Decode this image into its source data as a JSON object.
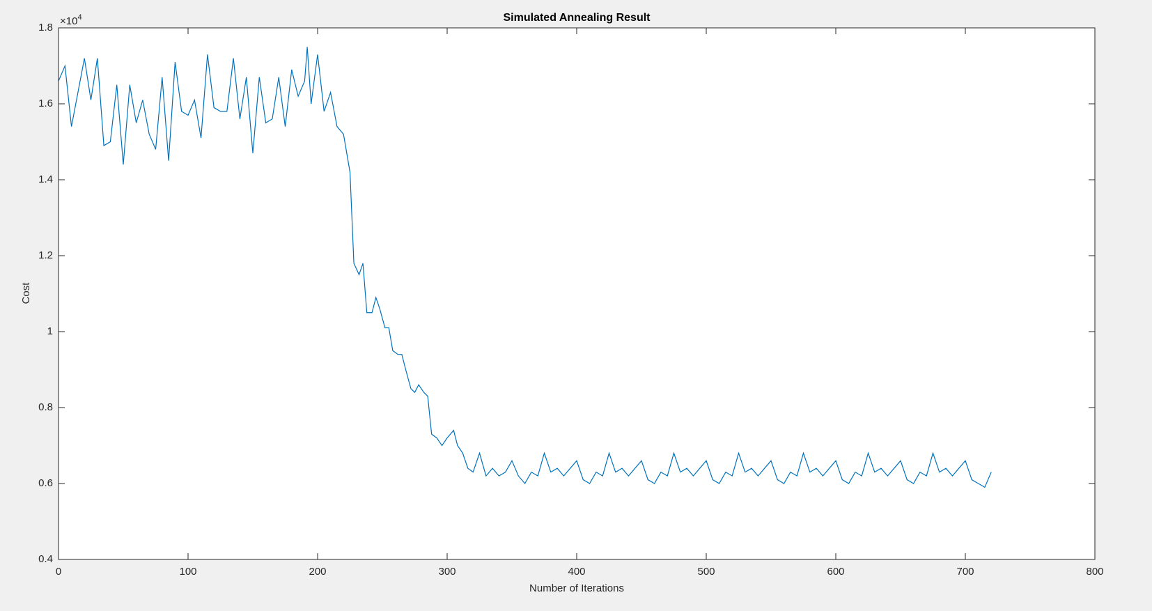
{
  "chart_data": {
    "type": "line",
    "title": "Simulated Annealing Result",
    "xlabel": "Number of Iterations",
    "ylabel": "Cost",
    "y_multiplier": {
      "base": "×10",
      "exponent": "4"
    },
    "xlim": [
      0,
      800
    ],
    "xticks": [
      0,
      100,
      200,
      300,
      400,
      500,
      600,
      700,
      800
    ],
    "ylim": [
      0.4,
      1.8
    ],
    "yticks": [
      0.4,
      0.6,
      0.8,
      1,
      1.2,
      1.4,
      1.6,
      1.8
    ],
    "grid": false,
    "box": true,
    "series": [
      {
        "color": "#0072bd",
        "x": [
          0,
          5,
          10,
          15,
          20,
          25,
          30,
          35,
          40,
          45,
          50,
          55,
          60,
          65,
          70,
          75,
          80,
          85,
          90,
          95,
          100,
          105,
          110,
          115,
          120,
          125,
          130,
          135,
          140,
          145,
          150,
          155,
          160,
          165,
          170,
          175,
          180,
          185,
          190,
          192,
          195,
          200,
          205,
          210,
          215,
          220,
          225,
          228,
          232,
          235,
          238,
          242,
          245,
          248,
          252,
          255,
          258,
          262,
          265,
          268,
          272,
          275,
          278,
          282,
          285,
          288,
          292,
          296,
          300,
          305,
          308,
          312,
          316,
          320,
          325,
          330,
          335,
          340,
          345,
          350,
          355,
          360,
          365,
          370,
          375,
          380,
          385,
          390,
          395,
          400,
          405,
          410,
          415,
          420,
          425,
          430,
          435,
          440,
          445,
          450,
          455,
          460,
          465,
          470,
          475,
          480,
          485,
          490,
          495,
          500,
          505,
          510,
          515,
          520,
          525,
          530,
          535,
          540,
          545,
          550,
          555,
          560,
          565,
          570,
          575,
          580,
          585,
          590,
          595,
          600,
          605,
          610,
          615,
          620,
          625,
          630,
          635,
          640,
          645,
          650,
          655,
          660,
          665,
          670,
          675,
          680,
          685,
          690,
          695,
          700,
          705,
          710,
          715,
          720
        ],
        "values": [
          1.66,
          1.7,
          1.54,
          1.63,
          1.72,
          1.61,
          1.72,
          1.49,
          1.5,
          1.65,
          1.44,
          1.65,
          1.55,
          1.61,
          1.52,
          1.48,
          1.67,
          1.45,
          1.71,
          1.58,
          1.57,
          1.61,
          1.51,
          1.73,
          1.59,
          1.58,
          1.58,
          1.72,
          1.56,
          1.67,
          1.47,
          1.67,
          1.55,
          1.56,
          1.67,
          1.54,
          1.69,
          1.62,
          1.66,
          1.75,
          1.6,
          1.73,
          1.58,
          1.63,
          1.54,
          1.52,
          1.42,
          1.18,
          1.15,
          1.18,
          1.05,
          1.05,
          1.09,
          1.06,
          1.01,
          1.01,
          0.95,
          0.94,
          0.94,
          0.9,
          0.85,
          0.84,
          0.86,
          0.84,
          0.83,
          0.73,
          0.72,
          0.7,
          0.72,
          0.74,
          0.7,
          0.68,
          0.64,
          0.63,
          0.68,
          0.62,
          0.64,
          0.62,
          0.63,
          0.66,
          0.62,
          0.6,
          0.63,
          0.62,
          0.68,
          0.63,
          0.64,
          0.62,
          0.64,
          0.66,
          0.61,
          0.6,
          0.63,
          0.62,
          0.68,
          0.63,
          0.64,
          0.62,
          0.64,
          0.66,
          0.61,
          0.6,
          0.63,
          0.62,
          0.68,
          0.63,
          0.64,
          0.62,
          0.64,
          0.66,
          0.61,
          0.6,
          0.63,
          0.62,
          0.68,
          0.63,
          0.64,
          0.62,
          0.64,
          0.66,
          0.61,
          0.6,
          0.63,
          0.62,
          0.68,
          0.63,
          0.64,
          0.62,
          0.64,
          0.66,
          0.61,
          0.6,
          0.63,
          0.62,
          0.68,
          0.63,
          0.64,
          0.62,
          0.64,
          0.66,
          0.61,
          0.6,
          0.63,
          0.62,
          0.68,
          0.63,
          0.64,
          0.62,
          0.64,
          0.66,
          0.61,
          0.6,
          0.59,
          0.63
        ]
      }
    ]
  }
}
